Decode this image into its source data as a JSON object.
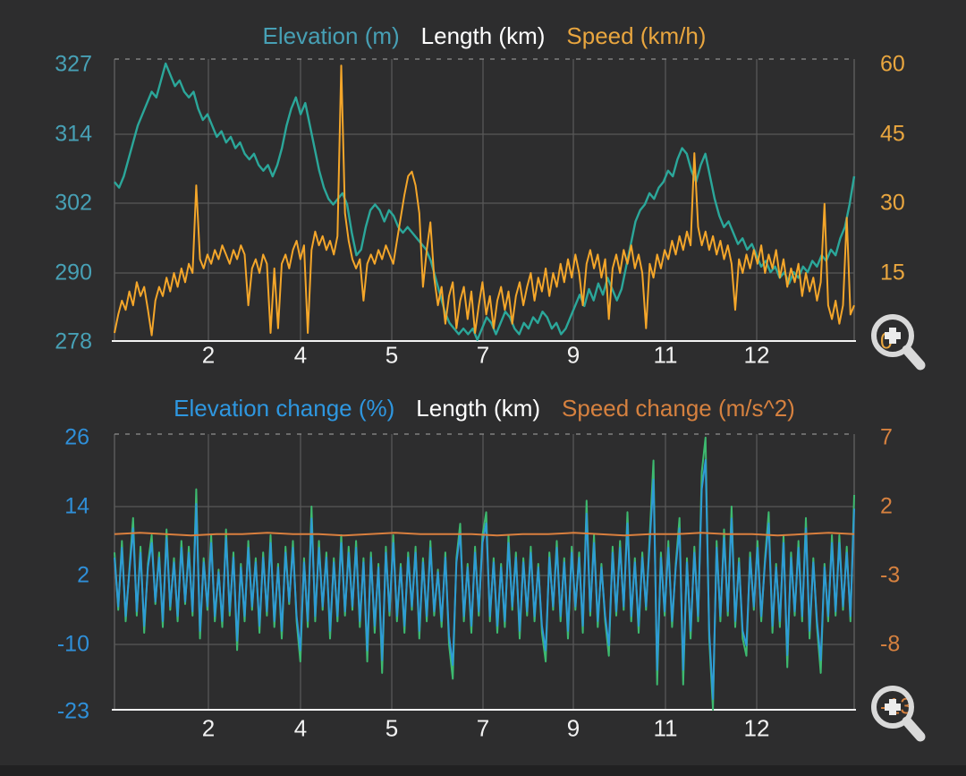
{
  "window": {
    "background": "#2d2d2e"
  },
  "chart_data": [
    {
      "type": "line",
      "title": "",
      "legend": [
        {
          "label": "Elevation (m)",
          "color": "#47a0b5"
        },
        {
          "label": "Length (km)",
          "color": "#ffffff"
        },
        {
          "label": "Speed (km/h)",
          "color": "#e9a63f"
        }
      ],
      "x_axis": {
        "label": "Length (km)",
        "ticks": [
          {
            "label": "2"
          },
          {
            "label": "4"
          },
          {
            "label": "5"
          },
          {
            "label": "7"
          },
          {
            "label": "9"
          },
          {
            "label": "11"
          },
          {
            "label": "12"
          }
        ]
      },
      "axes": {
        "left": {
          "name": "Elevation (m)",
          "color": "#47a0b5",
          "range": [
            277.8,
            327.8
          ],
          "ticks": [
            "327",
            "314",
            "302",
            "290",
            "278"
          ]
        },
        "right": {
          "name": "Speed (km/h)",
          "color": "#e9a63f",
          "range": [
            0.25,
            61.4
          ],
          "ticks": [
            "60",
            "45",
            "30",
            "15",
            "0"
          ]
        }
      },
      "grid": true,
      "legend_position": "top",
      "controls": {
        "zoom_in_icon": "magnifier-plus-icon"
      },
      "series": [
        {
          "name": "Elevation (m)",
          "axis": "left",
          "color": "#2ba79a",
          "width": 2.4,
          "values": [
            306,
            305,
            307,
            310,
            313,
            316,
            318,
            320,
            322,
            321,
            324,
            327,
            325,
            323,
            324,
            322,
            321,
            322,
            319,
            317,
            318,
            316,
            314,
            315,
            313,
            314,
            312,
            313,
            311,
            310,
            311,
            309,
            308,
            309,
            307,
            309,
            312,
            316,
            319,
            321,
            318,
            320,
            316,
            312,
            308,
            305,
            303,
            302,
            303,
            304,
            302,
            297,
            293,
            294,
            298,
            301,
            302,
            301,
            299,
            301,
            300,
            298,
            297,
            298,
            297,
            296,
            295,
            294,
            292,
            289,
            286,
            283,
            281,
            280,
            279,
            280,
            279,
            280,
            278,
            280,
            282,
            281,
            279,
            281,
            283,
            282,
            280,
            279,
            281,
            280,
            282,
            281,
            283,
            282,
            280,
            281,
            279,
            280,
            282,
            284,
            286,
            284,
            287,
            285,
            288,
            286,
            289,
            287,
            285,
            287,
            291,
            295,
            299,
            301,
            302,
            304,
            303,
            305,
            306,
            308,
            307,
            310,
            312,
            311,
            308,
            306,
            309,
            311,
            307,
            303,
            300,
            298,
            299,
            297,
            295,
            296,
            294,
            295,
            293,
            291,
            292,
            290,
            291,
            289,
            290,
            288,
            290,
            289,
            291,
            290,
            292,
            291,
            293,
            292,
            294,
            293,
            296,
            298,
            302,
            307
          ]
        },
        {
          "name": "Speed (km/h)",
          "axis": "right",
          "color": "#f4a62a",
          "width": 2,
          "values": [
            2,
            6,
            9,
            7,
            11,
            8,
            13,
            10,
            12,
            7,
            1.5,
            9,
            12,
            10,
            14,
            11,
            15,
            12,
            16,
            13,
            17,
            15,
            34,
            18,
            16,
            19,
            17,
            20,
            18,
            21,
            19,
            17,
            20,
            18,
            21,
            19,
            8,
            16,
            18,
            15,
            19,
            17,
            2,
            16,
            3,
            17,
            19,
            16,
            20,
            22,
            18,
            21,
            2,
            20,
            24,
            21,
            23,
            20,
            22,
            19,
            23,
            60,
            28,
            22,
            18,
            16,
            18,
            9,
            17,
            19,
            17,
            20,
            18,
            21,
            19,
            17,
            22,
            27,
            32,
            36,
            37,
            34,
            28,
            12,
            20,
            26,
            14,
            8,
            12,
            4,
            10,
            13,
            3,
            9,
            12,
            5,
            11,
            2,
            8,
            13,
            6,
            10,
            3,
            9,
            12,
            7,
            11,
            4,
            10,
            13,
            8,
            12,
            15,
            9,
            14,
            11,
            16,
            10,
            15,
            12,
            17,
            13,
            18,
            14,
            19,
            15,
            8,
            17,
            20,
            16,
            19,
            14,
            18,
            5,
            16,
            19,
            15,
            20,
            17,
            21,
            16,
            19,
            15,
            3,
            17,
            14,
            19,
            16,
            20,
            18,
            22,
            19,
            23,
            20,
            24,
            21,
            41,
            25,
            21,
            24,
            20,
            23,
            19,
            22,
            18,
            21,
            17,
            7,
            18,
            15,
            19,
            16,
            20,
            17,
            21,
            15,
            19,
            16,
            20,
            14,
            18,
            12,
            16,
            13,
            17,
            10,
            15,
            11,
            14,
            9,
            13,
            30,
            8,
            5,
            9,
            4,
            8,
            27,
            6,
            8
          ]
        }
      ]
    },
    {
      "type": "line",
      "title": "",
      "legend": [
        {
          "label": "Elevation change (%)",
          "color": "#2e97e0"
        },
        {
          "label": "Length (km)",
          "color": "#ffffff"
        },
        {
          "label": "Speed change (m/s^2)",
          "color": "#d6813f"
        }
      ],
      "x_axis": {
        "label": "Length (km)",
        "ticks": [
          {
            "label": "2"
          },
          {
            "label": "4"
          },
          {
            "label": "5"
          },
          {
            "label": "7"
          },
          {
            "label": "9"
          },
          {
            "label": "11"
          },
          {
            "label": "12"
          }
        ]
      },
      "axes": {
        "left": {
          "name": "Elevation change (%)",
          "color": "#2f8fd8",
          "range": [
            -21.4,
            26.6
          ],
          "ticks": [
            "26",
            "14",
            "2",
            "-10",
            "-23"
          ]
        },
        "right": {
          "name": "Speed change (m/s^2)",
          "color": "#d6813f",
          "range": [
            -12.74,
            7.26
          ],
          "ticks": [
            "7",
            "2",
            "-3",
            "-8",
            "-13"
          ]
        }
      },
      "grid": true,
      "legend_position": "top",
      "controls": {
        "zoom_in_icon": "magnifier-plus-icon"
      },
      "series": [
        {
          "name": "Elevation change (%) green trace",
          "axis": "left",
          "color": "#3dba6f",
          "width": 2,
          "values": [
            6,
            -4,
            8,
            -6,
            3,
            12,
            -5,
            7,
            -8,
            4,
            9,
            -3,
            6,
            -7,
            10,
            -4,
            5,
            -6,
            8,
            -3,
            7,
            -5,
            17,
            -9,
            5,
            -4,
            9,
            -6,
            3,
            -7,
            10,
            -5,
            6,
            -11,
            4,
            -6,
            8,
            -4,
            5,
            -8,
            6,
            -5,
            9,
            -7,
            4,
            -9,
            7,
            -3,
            8,
            -6,
            -13,
            5,
            -7,
            14,
            -6,
            8,
            -4,
            6,
            -9,
            5,
            -6,
            9,
            -5,
            7,
            -4,
            8,
            -7,
            5,
            -13,
            6,
            -8,
            4,
            -15,
            7,
            -5,
            9,
            -6,
            4,
            -8,
            6,
            -4,
            7,
            -9,
            5,
            -6,
            8,
            -5,
            3,
            -7,
            6,
            -10,
            -16,
            5,
            11,
            -6,
            4,
            -8,
            7,
            -5,
            9,
            13,
            -6,
            5,
            -8,
            4,
            -7,
            9,
            -4,
            6,
            -9,
            5,
            -5,
            7,
            -6,
            4,
            -8,
            -13,
            6,
            -4,
            8,
            -6,
            5,
            -9,
            7,
            -4,
            6,
            -8,
            15,
            -5,
            9,
            -7,
            4,
            -6,
            -12,
            7,
            -5,
            8,
            -4,
            13,
            -6,
            5,
            -8,
            6,
            -4,
            9,
            22,
            -17,
            6,
            -5,
            8,
            -7,
            4,
            12,
            -17,
            5,
            -9,
            7,
            -6,
            20,
            26,
            -9,
            -23,
            8,
            -6,
            10,
            -5,
            14,
            -7,
            5,
            -9,
            -12,
            6,
            -4,
            8,
            -6,
            5,
            13,
            -8,
            4,
            -7,
            9,
            -14,
            6,
            -5,
            8,
            -6,
            12,
            -9,
            5,
            -7,
            -15,
            4,
            -6,
            9,
            -5,
            9,
            -4,
            7,
            -6,
            16
          ]
        },
        {
          "name": "Elevation change (%)",
          "axis": "left",
          "color": "#2e9bd6",
          "width": 2,
          "values_from": 0,
          "scale": 0.85
        },
        {
          "name": "Speed change (m/s^2)",
          "axis": "right",
          "color": "#d97f3e",
          "width": 2,
          "values": [
            0,
            0.1,
            0,
            -0.1,
            0,
            0,
            0.1,
            0,
            0,
            -0.1,
            0,
            0.1,
            0,
            0,
            0,
            -0.1,
            0,
            0,
            0.1,
            0,
            -0.1,
            0,
            0,
            0.1,
            0,
            0,
            -0.1,
            0,
            0.1,
            0
          ]
        }
      ]
    }
  ]
}
